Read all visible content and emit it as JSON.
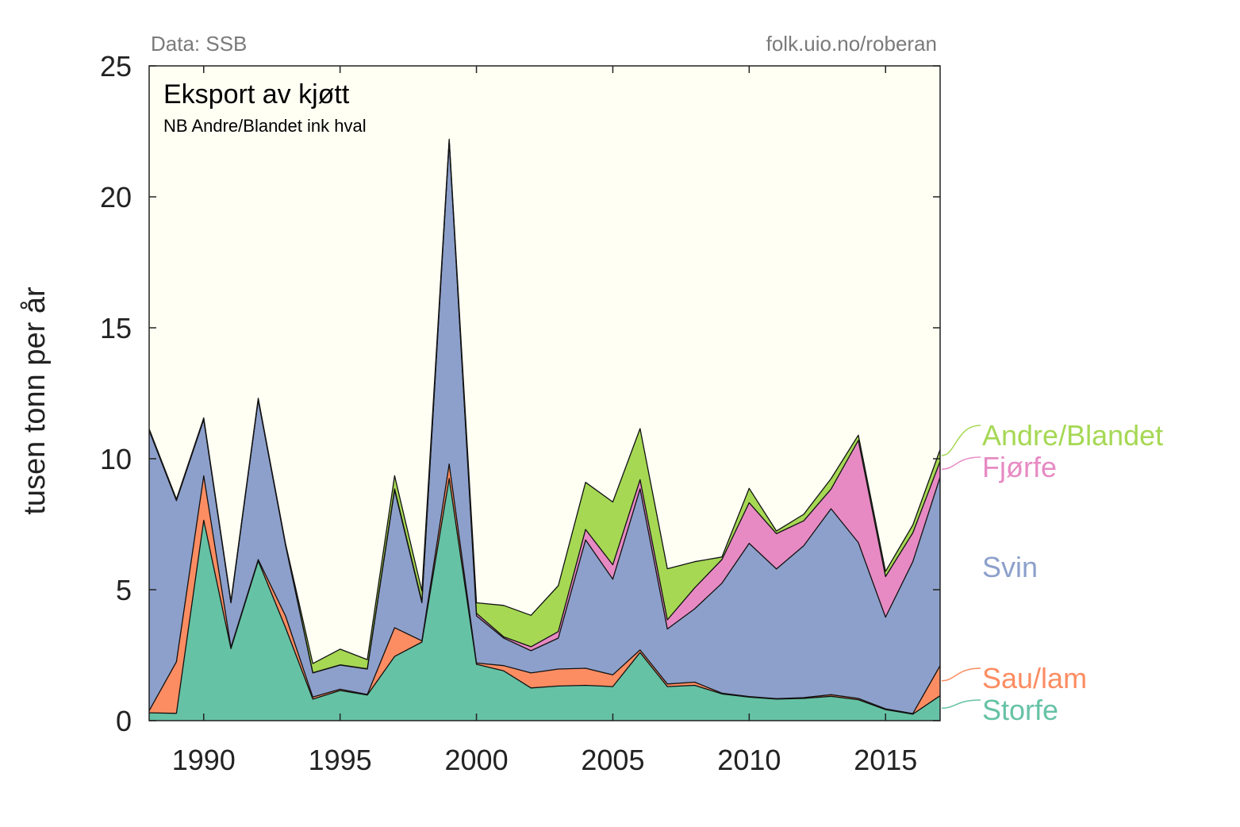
{
  "source_left": "Data: SSB",
  "source_right": "folk.uio.no/roberan",
  "colors": {
    "background": "#fffff4",
    "Storfe": "#66c2a5",
    "Sau/lam": "#fc8d62",
    "Svin": "#8da0cb",
    "Fjørfe": "#e78ac3",
    "Andre/Blandet": "#a6d854"
  },
  "chart_data": {
    "type": "area",
    "stacked": true,
    "title": "Eksport av kjøtt",
    "subtitle": "NB Andre/Blandet ink hval",
    "ylabel": "tusen tonn per år",
    "xlabel": "",
    "xlim": [
      1988,
      2017
    ],
    "ylim": [
      0,
      25
    ],
    "xticks": [
      1990,
      1995,
      2000,
      2005,
      2010,
      2015
    ],
    "yticks": [
      0,
      5,
      10,
      15,
      20,
      25
    ],
    "grid": false,
    "legend": "right-side labels",
    "x": [
      1988,
      1989,
      1990,
      1991,
      1992,
      1993,
      1994,
      1995,
      1996,
      1997,
      1998,
      1999,
      2000,
      2001,
      2002,
      2003,
      2004,
      2005,
      2006,
      2007,
      2008,
      2009,
      2010,
      2011,
      2012,
      2013,
      2014,
      2015,
      2016,
      2017
    ],
    "series": [
      {
        "name": "Storfe",
        "values": [
          0.3,
          0.28,
          7.65,
          2.75,
          6.1,
          3.55,
          0.82,
          1.15,
          0.98,
          2.45,
          3.0,
          9.25,
          2.15,
          1.9,
          1.25,
          1.32,
          1.35,
          1.3,
          2.6,
          1.3,
          1.35,
          1.02,
          0.9,
          0.82,
          0.85,
          0.93,
          0.8,
          0.42,
          0.25,
          0.95
        ]
      },
      {
        "name": "Sau/lam",
        "values": [
          0.08,
          1.97,
          1.7,
          0.05,
          0.05,
          0.45,
          0.08,
          0.05,
          0.02,
          1.1,
          0.05,
          0.55,
          0.05,
          0.2,
          0.57,
          0.65,
          0.65,
          0.45,
          0.1,
          0.1,
          0.12,
          0.03,
          0.02,
          0.02,
          0.03,
          0.06,
          0.05,
          0.03,
          0.02,
          1.15
        ]
      },
      {
        "name": "Svin",
        "values": [
          10.7,
          6.15,
          2.15,
          1.7,
          6.1,
          2.7,
          0.92,
          0.92,
          0.97,
          5.25,
          1.45,
          12.3,
          1.8,
          1.05,
          0.85,
          1.18,
          4.9,
          3.65,
          6.15,
          2.1,
          2.8,
          4.2,
          5.85,
          4.95,
          5.8,
          7.1,
          5.95,
          3.5,
          5.8,
          7.2
        ]
      },
      {
        "name": "Fjørfe",
        "values": [
          0.01,
          0.01,
          0.01,
          0.01,
          0.01,
          0.01,
          0.01,
          0.01,
          0.01,
          0.05,
          0.05,
          0.05,
          0.1,
          0.05,
          0.15,
          0.25,
          0.4,
          0.55,
          0.35,
          0.35,
          0.8,
          0.9,
          1.55,
          1.35,
          0.95,
          0.75,
          3.9,
          1.55,
          1.1,
          0.6
        ]
      },
      {
        "name": "Andre/Blandet",
        "values": [
          0.05,
          0.05,
          0.05,
          0.05,
          0.05,
          0.05,
          0.35,
          0.6,
          0.35,
          0.5,
          0.4,
          0.05,
          0.4,
          1.2,
          1.2,
          1.75,
          1.8,
          2.4,
          1.95,
          1.95,
          1.0,
          0.1,
          0.55,
          0.1,
          0.25,
          0.4,
          0.2,
          0.2,
          0.3,
          0.45
        ]
      }
    ],
    "series_labels": [
      "Andre/Blandet",
      "Fjørfe",
      "Svin",
      "Sau/lam",
      "Storfe"
    ]
  }
}
